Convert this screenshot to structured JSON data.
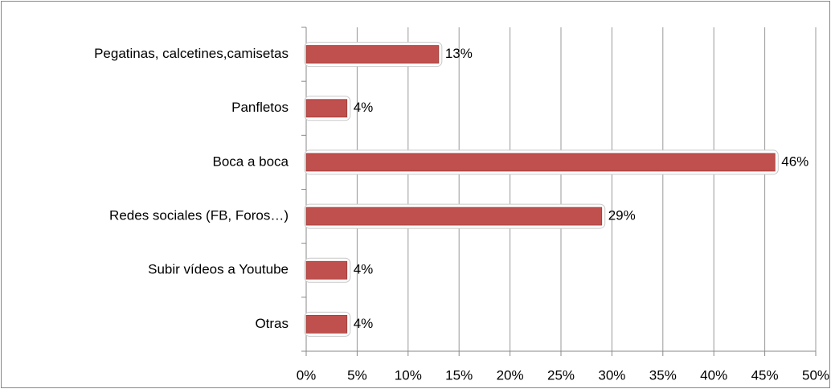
{
  "chart_data": {
    "type": "bar",
    "orientation": "horizontal",
    "categories": [
      "Pegatinas, calcetines,camisetas",
      "Panfletos",
      "Boca a boca",
      "Redes sociales (FB, Foros…)",
      "Subir vídeos a Youtube",
      "Otras"
    ],
    "values": [
      13,
      4,
      46,
      29,
      4,
      4
    ],
    "value_labels": [
      "13%",
      "4%",
      "46%",
      "29%",
      "4%",
      "4%"
    ],
    "color": "#c0504d",
    "xlim": [
      0,
      50
    ],
    "xticks": [
      {
        "value": 0,
        "label": "0%"
      },
      {
        "value": 5,
        "label": "5%"
      },
      {
        "value": 10,
        "label": "10%"
      },
      {
        "value": 15,
        "label": "15%"
      },
      {
        "value": 20,
        "label": "20%"
      },
      {
        "value": 25,
        "label": "25%"
      },
      {
        "value": 30,
        "label": "30%"
      },
      {
        "value": 35,
        "label": "35%"
      },
      {
        "value": 40,
        "label": "40%"
      },
      {
        "value": 45,
        "label": "45%"
      },
      {
        "value": 50,
        "label": "50%"
      }
    ],
    "grid": true
  }
}
